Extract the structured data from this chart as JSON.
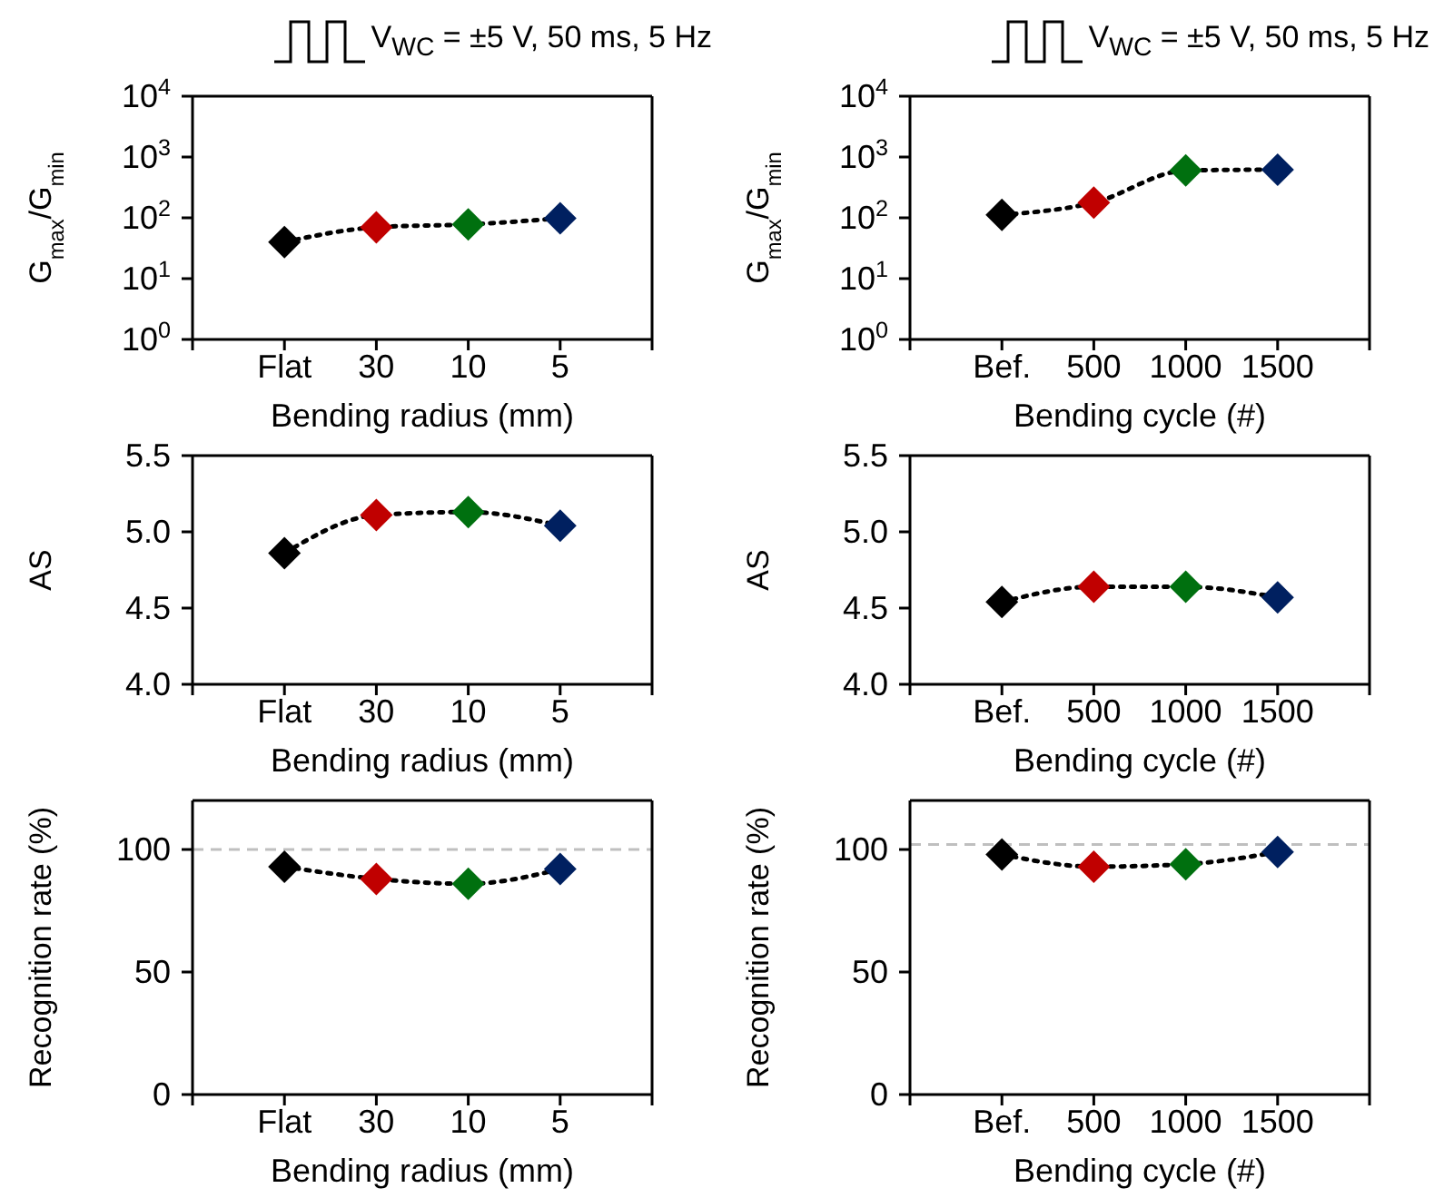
{
  "chart_data": [
    {
      "type": "line",
      "title": "V$_{WC}$ = ±5 V, 50 ms, 5 Hz",
      "xlabel": "Bending radius (mm)",
      "ylabel": "G$_{max}$/G$_{min}$",
      "categories": [
        "Flat",
        "30",
        "10",
        "5"
      ],
      "log": "y",
      "ylim": [
        1,
        10000
      ],
      "yticks": [
        {
          "value": 1,
          "label": "10$^{0}$"
        },
        {
          "value": 10,
          "label": "10$^{1}$"
        },
        {
          "value": 100,
          "label": "10$^{2}$"
        },
        {
          "value": 1000,
          "label": "10$^{3}$"
        },
        {
          "value": 10000,
          "label": "10$^{4}$"
        }
      ],
      "marker": "diamond",
      "line_style": "dotted",
      "grid": false,
      "legend": false,
      "series": [
        {
          "color": "#000000",
          "colors": [
            "#000000",
            "#c00000",
            "#00700f",
            "#002060"
          ],
          "values": [
            40,
            70,
            78,
            98
          ]
        }
      ]
    },
    {
      "type": "line",
      "title": "V$_{WC}$ = ±5 V, 50 ms, 5 Hz",
      "xlabel": "Bending cycle (#)",
      "ylabel": "G$_{max}$/G$_{min}$",
      "categories": [
        "Bef.",
        "500",
        "1000",
        "1500"
      ],
      "log": "y",
      "ylim": [
        1,
        10000
      ],
      "yticks": [
        {
          "value": 1,
          "label": "10$^{0}$"
        },
        {
          "value": 10,
          "label": "10$^{1}$"
        },
        {
          "value": 100,
          "label": "10$^{2}$"
        },
        {
          "value": 1000,
          "label": "10$^{3}$"
        },
        {
          "value": 10000,
          "label": "10$^{4}$"
        }
      ],
      "marker": "diamond",
      "line_style": "dotted",
      "grid": false,
      "legend": false,
      "series": [
        {
          "color": "#000000",
          "colors": [
            "#000000",
            "#c00000",
            "#00700f",
            "#002060"
          ],
          "values": [
            112,
            178,
            600,
            620
          ]
        }
      ]
    },
    {
      "type": "line",
      "xlabel": "Bending radius (mm)",
      "ylabel": "AS",
      "categories": [
        "Flat",
        "30",
        "10",
        "5"
      ],
      "ylim": [
        4.0,
        5.5
      ],
      "yticks": [
        {
          "value": 4,
          "label": "4.0"
        },
        4.5,
        {
          "value": 5,
          "label": "5.0"
        },
        5.5
      ],
      "marker": "diamond",
      "line_style": "dotted",
      "grid": false,
      "legend": false,
      "series": [
        {
          "color": "#000000",
          "colors": [
            "#000000",
            "#c00000",
            "#00700f",
            "#002060"
          ],
          "values": [
            4.86,
            5.11,
            5.13,
            5.04
          ]
        }
      ]
    },
    {
      "type": "line",
      "xlabel": "Bending cycle (#)",
      "ylabel": "AS",
      "categories": [
        "Bef.",
        "500",
        "1000",
        "1500"
      ],
      "ylim": [
        4.0,
        5.5
      ],
      "yticks": [
        {
          "value": 4,
          "label": "4.0"
        },
        4.5,
        {
          "value": 5,
          "label": "5.0"
        },
        5.5
      ],
      "marker": "diamond",
      "line_style": "dotted",
      "grid": false,
      "legend": false,
      "series": [
        {
          "color": "#000000",
          "colors": [
            "#000000",
            "#c00000",
            "#00700f",
            "#002060"
          ],
          "values": [
            4.54,
            4.64,
            4.64,
            4.57
          ]
        }
      ]
    },
    {
      "type": "line",
      "xlabel": "Bending radius (mm)",
      "ylabel": "Recognition rate (%)",
      "categories": [
        "Flat",
        "30",
        "10",
        "5"
      ],
      "ylim": [
        0,
        120
      ],
      "yticks": [
        0,
        50,
        100
      ],
      "marker": "diamond",
      "line_style": "dotted",
      "grid": false,
      "legend": false,
      "ref_lines": [
        {
          "axis": "y",
          "value": 100,
          "color": "#bfbfbf",
          "line_style": "dashed"
        }
      ],
      "series": [
        {
          "color": "#000000",
          "colors": [
            "#000000",
            "#c00000",
            "#00700f",
            "#002060"
          ],
          "values": [
            93,
            88,
            86,
            92
          ]
        }
      ]
    },
    {
      "type": "line",
      "xlabel": "Bending cycle (#)",
      "ylabel": "Recognition rate (%)",
      "categories": [
        "Bef.",
        "500",
        "1000",
        "1500"
      ],
      "ylim": [
        0,
        120
      ],
      "yticks": [
        0,
        50,
        100
      ],
      "marker": "diamond",
      "line_style": "dotted",
      "grid": false,
      "legend": false,
      "ref_lines": [
        {
          "axis": "y",
          "value": 102,
          "color": "#bfbfbf",
          "line_style": "dashed"
        }
      ],
      "series": [
        {
          "color": "#000000",
          "colors": [
            "#000000",
            "#c00000",
            "#00700f",
            "#002060"
          ],
          "values": [
            98,
            93,
            94,
            99
          ]
        }
      ]
    }
  ]
}
